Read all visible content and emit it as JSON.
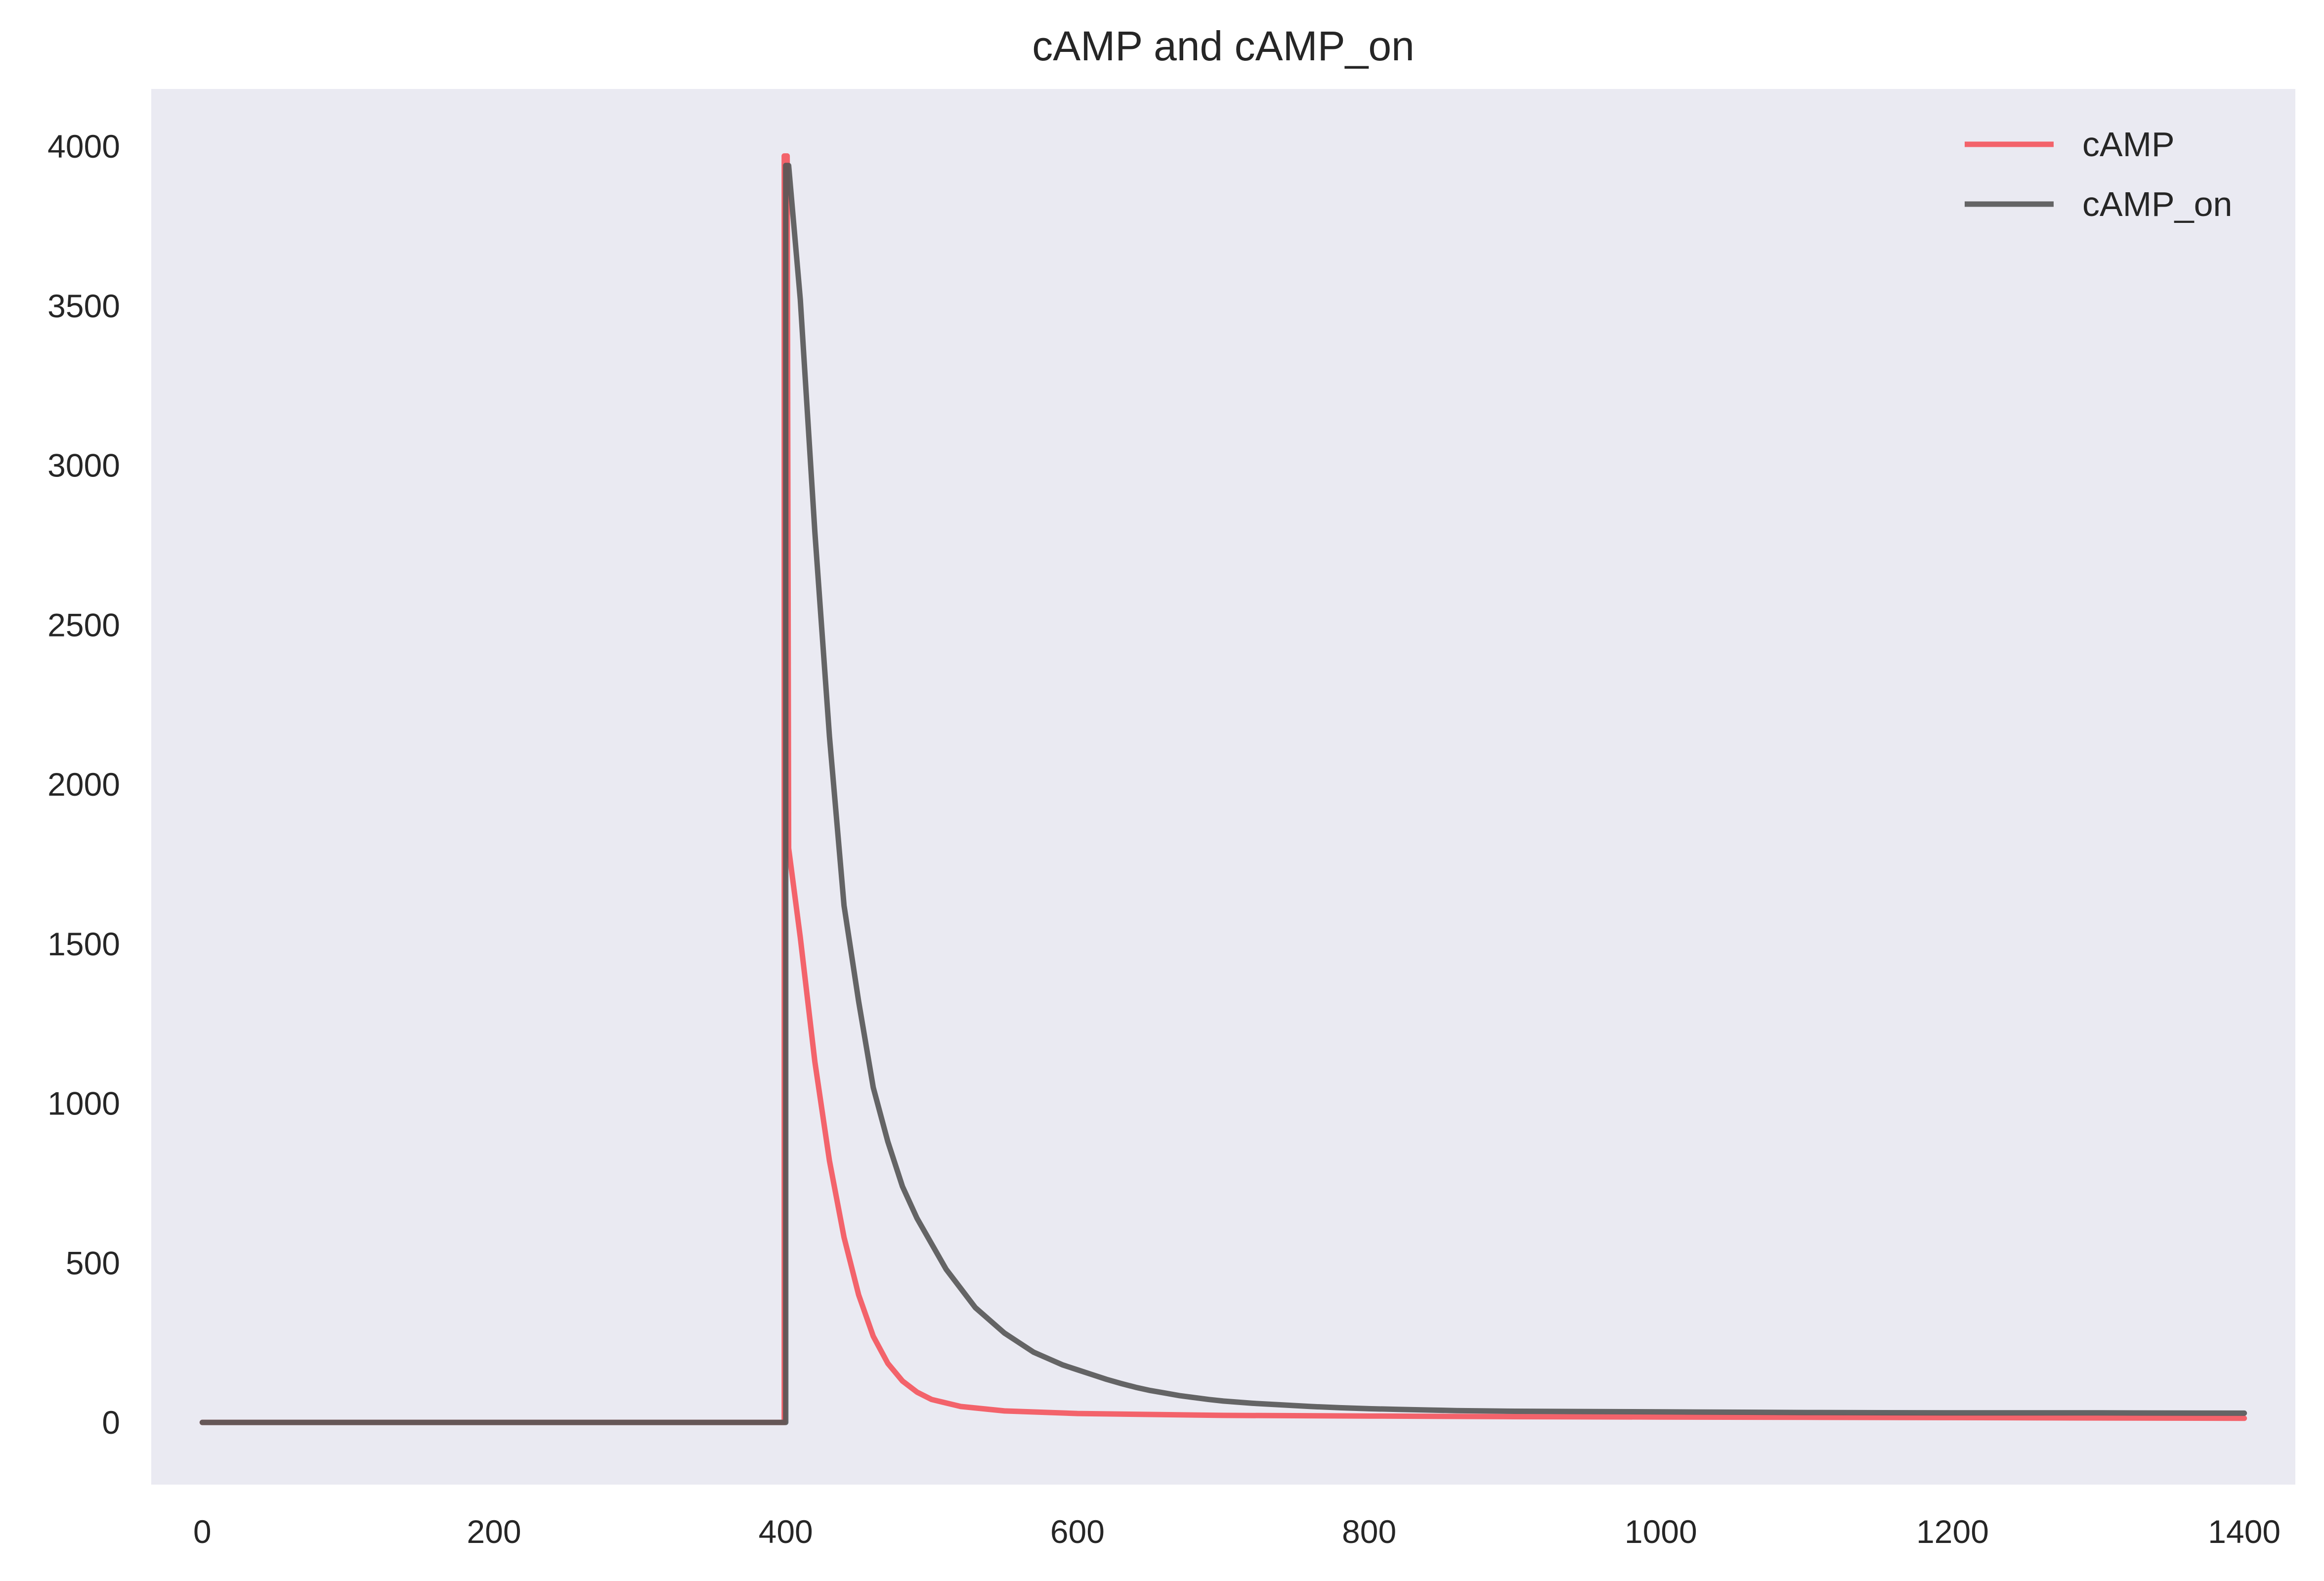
{
  "chart_data": {
    "type": "line",
    "title": "cAMP and cAMP_on",
    "xlabel": "",
    "ylabel": "",
    "xlim": [
      -35,
      1435
    ],
    "ylim": [
      -195,
      4180
    ],
    "xticks": [
      0,
      200,
      400,
      600,
      800,
      1000,
      1200,
      1400
    ],
    "xtick_labels": [
      "0",
      "200",
      "400",
      "600",
      "800",
      "1000",
      "1200",
      "1400"
    ],
    "yticks": [
      0,
      500,
      1000,
      1500,
      2000,
      2500,
      3000,
      3500,
      4000
    ],
    "ytick_labels": [
      "0",
      "500",
      "1000",
      "1500",
      "2000",
      "2500",
      "3000",
      "3500",
      "4000"
    ],
    "grid": false,
    "background": "#eaeaf2",
    "legend_position": "top-right",
    "series": [
      {
        "name": "cAMP",
        "color": "#f4545c",
        "x": [
          0,
          399,
          399,
          401,
          402,
          410,
          420,
          430,
          440,
          450,
          460,
          470,
          480,
          490,
          500,
          520,
          550,
          600,
          700,
          800,
          900,
          1000,
          1100,
          1200,
          1300,
          1400
        ],
        "y": [
          0,
          0,
          3970,
          3970,
          1800,
          1520,
          1130,
          820,
          580,
          400,
          270,
          185,
          130,
          95,
          72,
          50,
          36,
          28,
          22,
          20,
          18,
          17,
          16,
          15,
          14,
          13
        ]
      },
      {
        "name": "cAMP_on",
        "color": "#555555",
        "x": [
          0,
          400,
          400,
          402,
          410,
          420,
          430,
          440,
          450,
          460,
          470,
          480,
          490,
          500,
          510,
          520,
          530,
          540,
          550,
          560,
          570,
          580,
          590,
          600,
          610,
          620,
          630,
          640,
          650,
          660,
          670,
          680,
          690,
          700,
          720,
          740,
          760,
          780,
          800,
          820,
          840,
          860,
          880,
          900,
          1000,
          1100,
          1200,
          1300,
          1400
        ],
        "y": [
          0,
          0,
          3940,
          3940,
          3520,
          2790,
          2150,
          1620,
          1320,
          1050,
          880,
          740,
          640,
          560,
          480,
          420,
          360,
          320,
          280,
          250,
          220,
          200,
          180,
          165,
          150,
          135,
          122,
          110,
          100,
          92,
          84,
          78,
          72,
          67,
          60,
          55,
          50,
          46,
          43,
          41,
          39,
          37,
          36,
          35,
          33,
          31,
          30,
          30,
          29
        ]
      }
    ]
  }
}
